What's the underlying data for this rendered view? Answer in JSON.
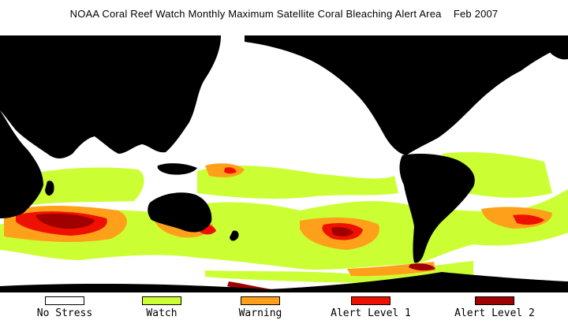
{
  "title": "NOAA Coral Reef Watch Monthly Maximum Satellite Coral Bleaching Alert Area",
  "date": "Feb 2007",
  "colors": {
    "land": "#000000",
    "ocean": "#ffffff",
    "watch": "#ccff33",
    "warning": "#ffa01a",
    "alert1": "#ee1100",
    "alert2": "#a00000"
  },
  "legend": [
    {
      "label": "No Stress",
      "color": "#ffffff"
    },
    {
      "label": "Watch",
      "color": "#ccff33"
    },
    {
      "label": "Warning",
      "color": "#ffa01a"
    },
    {
      "label": "Alert Level 1",
      "color": "#ee1100"
    },
    {
      "label": "Alert Level 2",
      "color": "#a00000"
    }
  ]
}
